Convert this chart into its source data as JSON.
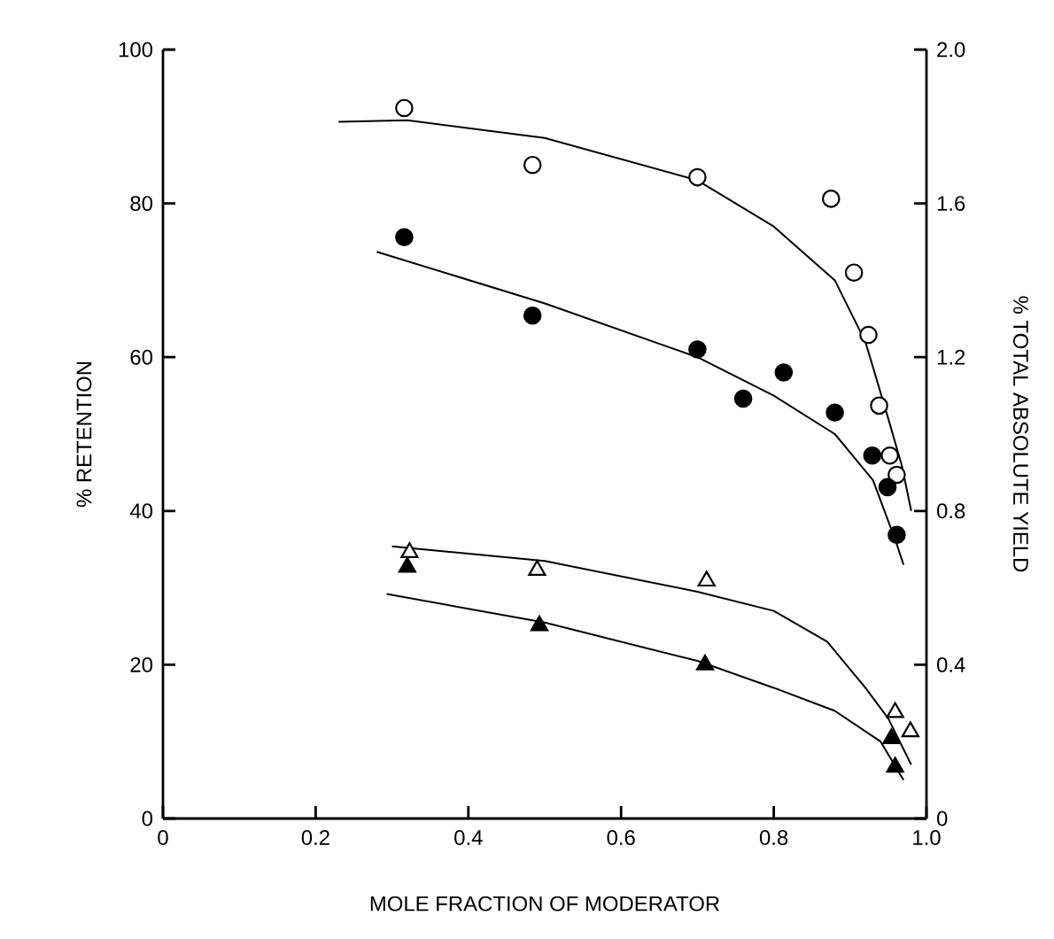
{
  "chart_data": {
    "type": "scatter",
    "xlabel": "MOLE FRACTION OF MODERATOR",
    "ylabel": "% RETENTION",
    "y2label": "% TOTAL ABSOLUTE YIELD",
    "xlim": [
      0,
      1.0
    ],
    "xticks": [
      0,
      0.2,
      0.4,
      0.6,
      0.8,
      {
        "value": 1.0,
        "label": "1.0"
      }
    ],
    "ylim": [
      0,
      100
    ],
    "yticks": [
      0,
      20,
      40,
      60,
      80,
      100
    ],
    "y2lim": [
      0,
      2.0
    ],
    "y2ticks": [
      0,
      0.4,
      0.8,
      1.2,
      1.6,
      {
        "value": 2.0,
        "label": "2.0"
      }
    ],
    "grid": false,
    "series": [
      {
        "type": "line",
        "color": "#000000",
        "marker": "none",
        "line_style": "solid",
        "x": [
          0.23,
          0.32,
          0.5,
          0.7,
          0.8,
          0.88,
          0.92,
          0.95,
          0.968,
          0.98
        ],
        "values": [
          90.6,
          90.8,
          88.5,
          83,
          77,
          70,
          62,
          52,
          45.8,
          40
        ]
      },
      {
        "type": "line",
        "color": "#000000",
        "marker": "none",
        "line_style": "solid",
        "x": [
          0.28,
          0.5,
          0.7,
          0.8,
          0.88,
          0.93,
          0.96,
          0.97
        ],
        "values": [
          73.7,
          67,
          60,
          55,
          50,
          44,
          36,
          33
        ]
      },
      {
        "type": "line",
        "color": "#000000",
        "marker": "none",
        "line_style": "solid",
        "x": [
          0.3,
          0.5,
          0.7,
          0.8,
          0.87,
          0.92,
          0.95,
          0.98
        ],
        "values": [
          35.4,
          33.5,
          29.5,
          27,
          23,
          17,
          13,
          7
        ]
      },
      {
        "type": "line",
        "color": "#000000",
        "marker": "none",
        "line_style": "solid",
        "x": [
          0.293,
          0.5,
          0.7,
          0.8,
          0.88,
          0.94,
          0.97
        ],
        "values": [
          29.2,
          25.5,
          20.5,
          17,
          14,
          10,
          5
        ]
      },
      {
        "color": "#ffffff",
        "marker": "circle",
        "x": [
          0.316,
          0.484,
          0.7,
          0.875,
          0.905,
          0.924,
          0.938,
          0.952,
          0.961
        ],
        "values": [
          92.4,
          85,
          83.4,
          80.6,
          71,
          62.9,
          53.7,
          47.2,
          44.7
        ]
      },
      {
        "color": "#000000",
        "marker": "circle",
        "x": [
          0.316,
          0.484,
          0.7,
          0.76,
          0.813,
          0.88,
          0.929,
          0.949,
          0.961
        ],
        "values": [
          75.6,
          65.4,
          61,
          54.6,
          58,
          52.8,
          47.2,
          43.1,
          36.9
        ]
      },
      {
        "color": "#ffffff",
        "marker": "triangle",
        "x": [
          0.323,
          0.49,
          0.712,
          0.959,
          0.979
        ],
        "values": [
          34.6,
          32.3,
          30.9,
          13.8,
          11.3
        ]
      },
      {
        "color": "#000000",
        "marker": "triangle",
        "x": [
          0.32,
          0.493,
          0.71,
          0.954,
          0.959
        ],
        "values": [
          32.7,
          25.1,
          20,
          10.4,
          6.7
        ]
      }
    ]
  }
}
